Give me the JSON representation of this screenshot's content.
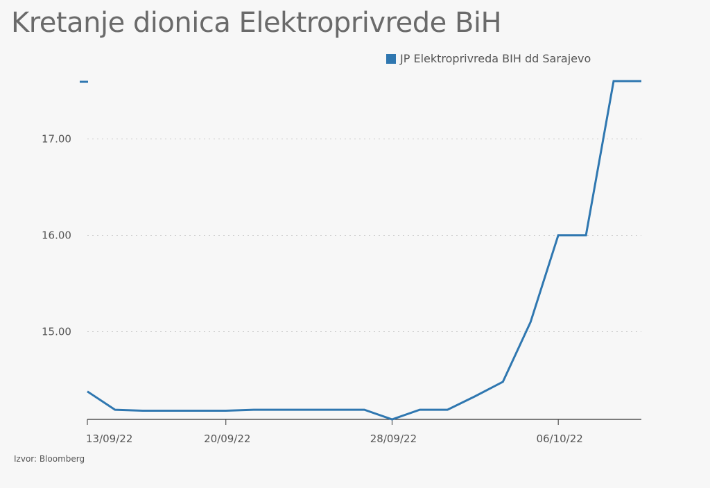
{
  "chart_data": {
    "type": "line",
    "title": "Kretanje dionica Elektroprivrede BiH",
    "source": "Izvor: Bloomberg",
    "legend_position": "top-right",
    "grid": "horizontal-dotted",
    "color": "#2f77b0",
    "ylim": [
      14.09,
      17.6
    ],
    "y_ticks": [
      15.0,
      16.0,
      17.0
    ],
    "y_tick_labels": [
      "15.00",
      "16.00",
      "17.00"
    ],
    "x_ticks": [
      "13/09/22",
      "20/09/22",
      "28/09/22",
      "06/10/22"
    ],
    "series": [
      {
        "name": "JP Elektroprivreda BIH dd Sarajevo",
        "x": [
          "13/09/22",
          "14/09/22",
          "15/09/22",
          "16/09/22",
          "19/09/22",
          "20/09/22",
          "21/09/22",
          "22/09/22",
          "23/09/22",
          "26/09/22",
          "27/09/22",
          "28/09/22",
          "29/09/22",
          "30/09/22",
          "03/10/22",
          "04/10/22",
          "05/10/22",
          "06/10/22",
          "07/10/22",
          "10/10/22",
          "11/10/22"
        ],
        "values": [
          14.38,
          14.19,
          14.18,
          14.18,
          14.18,
          14.18,
          14.19,
          14.19,
          14.19,
          14.19,
          14.19,
          14.09,
          14.19,
          14.19,
          14.33,
          14.48,
          15.1,
          16.0,
          16.0,
          17.6,
          17.6
        ]
      }
    ]
  }
}
